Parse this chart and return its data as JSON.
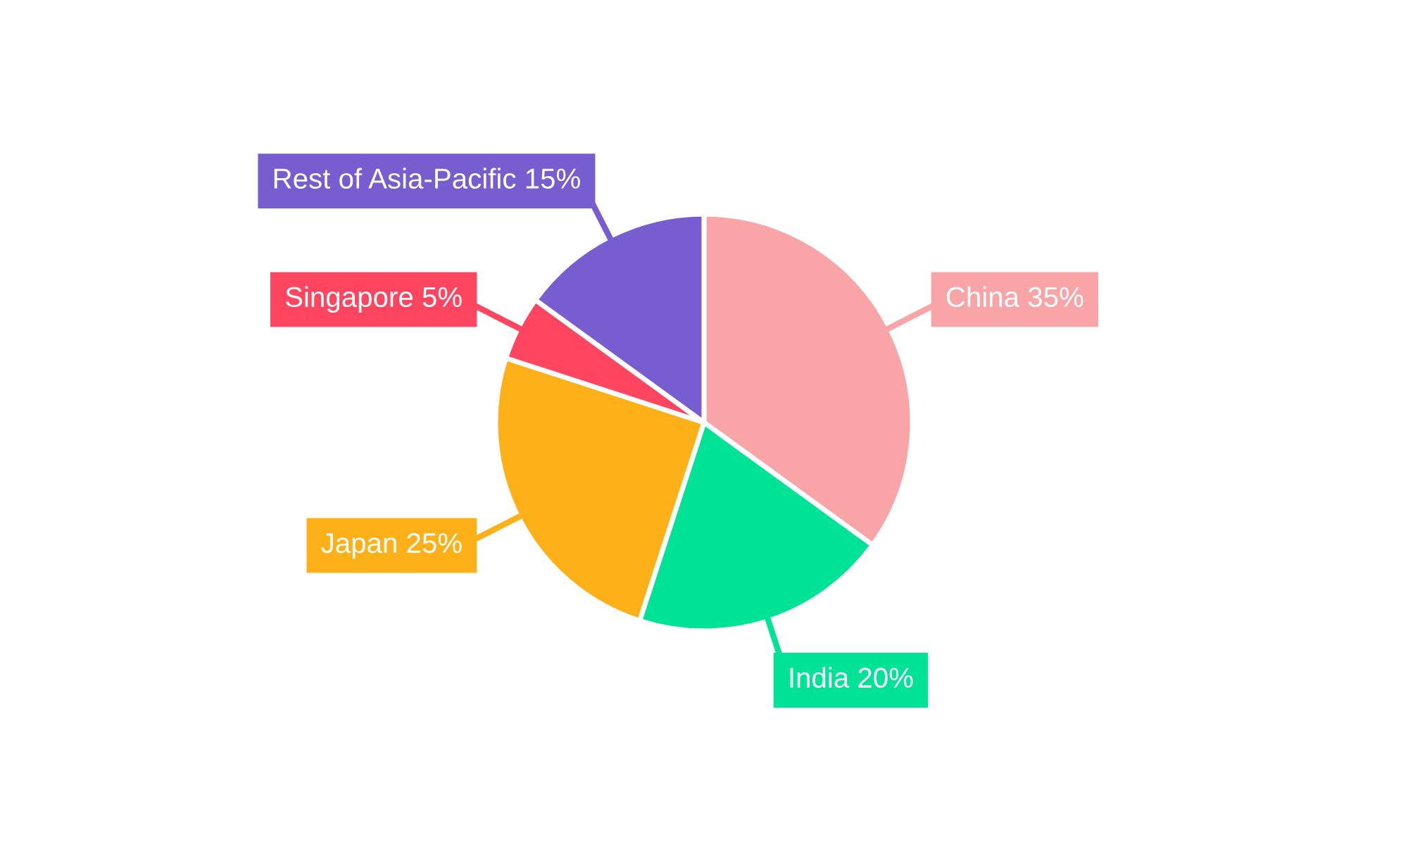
{
  "chart_data": {
    "type": "pie",
    "categories": [
      "China",
      "India",
      "Japan",
      "Singapore",
      "Rest of Asia-Pacific"
    ],
    "values": [
      35,
      20,
      25,
      5,
      15
    ],
    "value_labels": [
      "35%",
      "20%",
      "25%",
      "5%",
      "15%"
    ],
    "colors": [
      "#f9a4a7",
      "#00e396",
      "#feb019",
      "#ff4560",
      "#775dd0"
    ],
    "legend": false
  }
}
